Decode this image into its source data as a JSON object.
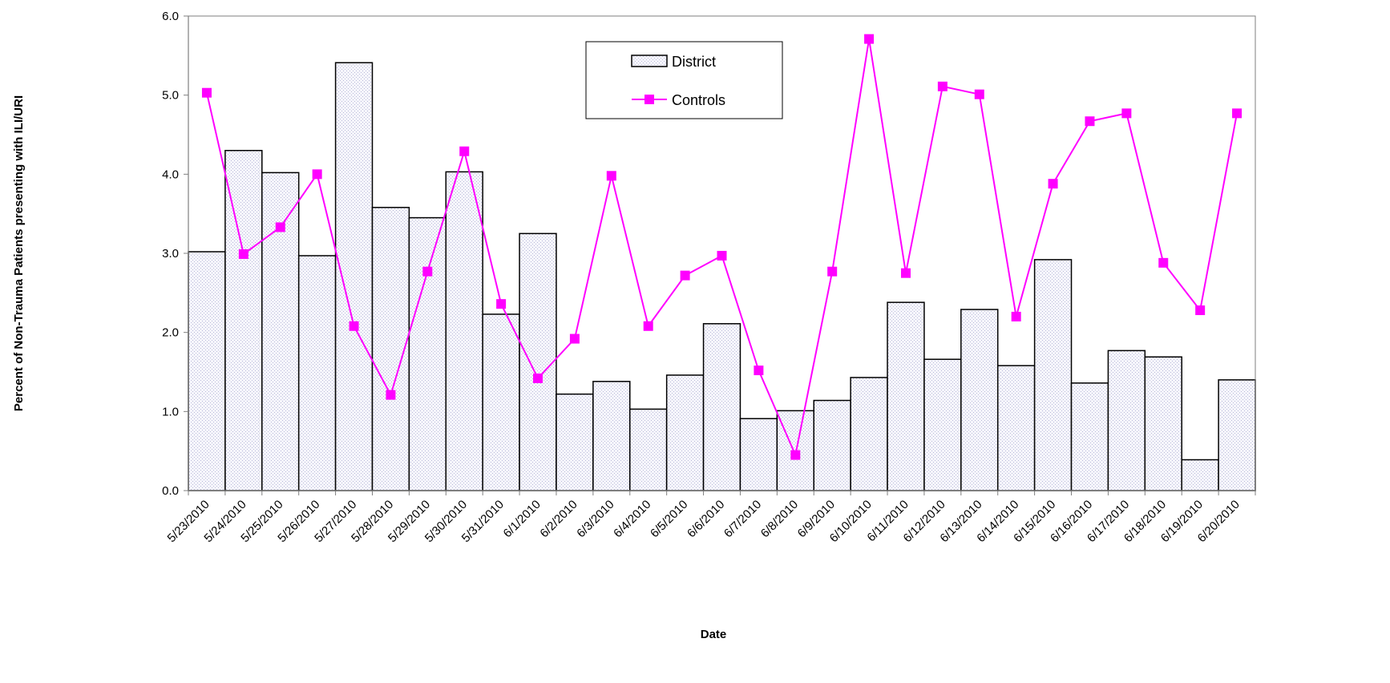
{
  "chart_data": {
    "type": "bar",
    "xlabel": "Date",
    "ylabel": "Percent of Non-Trauma Patients presenting with ILI/URI",
    "ylim": [
      0,
      6
    ],
    "y_ticks": [
      "0.0",
      "1.0",
      "2.0",
      "3.0",
      "4.0",
      "5.0",
      "6.0"
    ],
    "grid": false,
    "legend_position": "top-center",
    "categories": [
      "5/23/2010",
      "5/24/2010",
      "5/25/2010",
      "5/26/2010",
      "5/27/2010",
      "5/28/2010",
      "5/29/2010",
      "5/30/2010",
      "5/31/2010",
      "6/1/2010",
      "6/2/2010",
      "6/3/2010",
      "6/4/2010",
      "6/5/2010",
      "6/6/2010",
      "6/7/2010",
      "6/8/2010",
      "6/9/2010",
      "6/10/2010",
      "6/11/2010",
      "6/12/2010",
      "6/13/2010",
      "6/14/2010",
      "6/15/2010",
      "6/16/2010",
      "6/17/2010",
      "6/18/2010",
      "6/19/2010",
      "6/20/2010"
    ],
    "series": [
      {
        "name": "District",
        "kind": "bar",
        "fill_color": "#eeeef8",
        "edge_color": "#000000",
        "values": [
          3.02,
          4.3,
          4.02,
          2.97,
          5.41,
          3.58,
          3.45,
          4.03,
          2.23,
          3.25,
          1.22,
          1.38,
          1.03,
          1.46,
          2.11,
          0.91,
          1.01,
          1.14,
          1.43,
          2.38,
          1.66,
          2.29,
          1.58,
          2.92,
          1.36,
          1.77,
          1.69,
          0.39,
          1.4
        ]
      },
      {
        "name": "Controls",
        "kind": "line",
        "color": "#ff00ff",
        "marker": "square",
        "values": [
          5.03,
          2.99,
          3.33,
          4.0,
          2.08,
          1.21,
          2.77,
          4.29,
          2.36,
          1.42,
          1.92,
          3.98,
          2.08,
          2.72,
          2.97,
          1.52,
          0.45,
          2.77,
          5.71,
          2.75,
          5.11,
          5.01,
          2.2,
          3.88,
          4.67,
          4.77,
          2.88,
          2.28,
          4.77
        ]
      }
    ]
  }
}
